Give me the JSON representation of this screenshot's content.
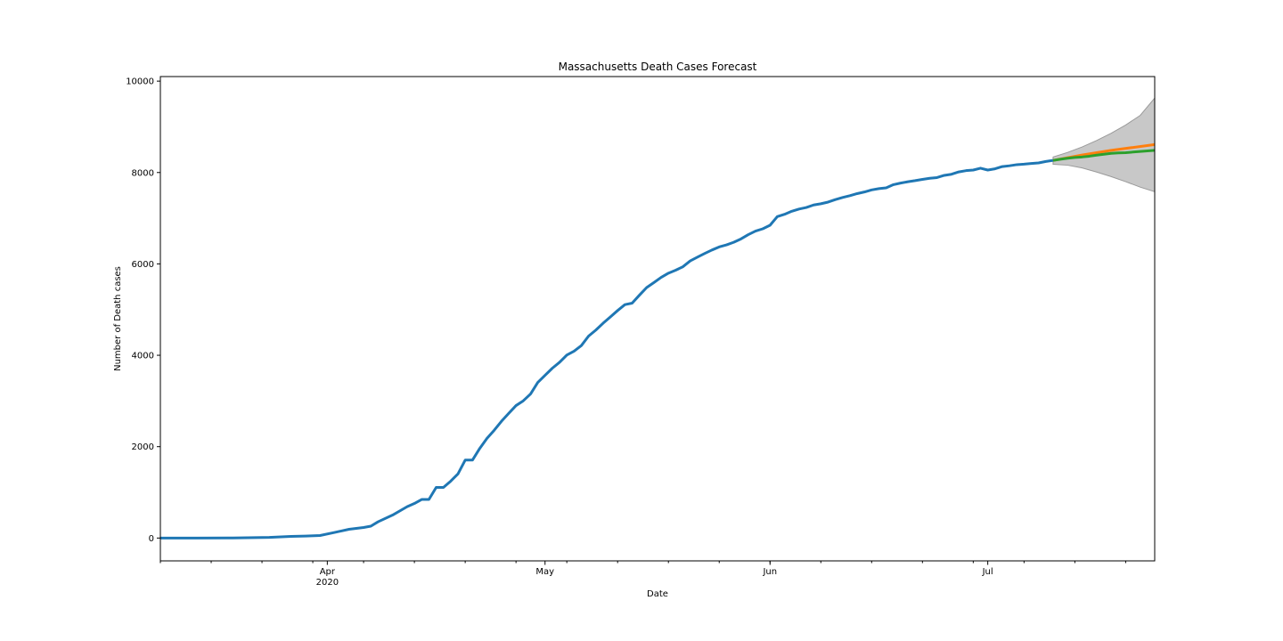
{
  "chart_data": {
    "type": "line",
    "title": "Massachusetts Death Cases Forecast",
    "xlabel": "Date",
    "ylabel": "Number of Death cases",
    "xlim": [
      "2020-03-09",
      "2020-07-24"
    ],
    "ylim": [
      -500,
      10100
    ],
    "yticks": [
      0,
      2000,
      4000,
      6000,
      8000,
      10000
    ],
    "xticks": [
      {
        "date": "2020-04-01",
        "label": "Apr",
        "sublabel": "2020"
      },
      {
        "date": "2020-05-01",
        "label": "May",
        "sublabel": ""
      },
      {
        "date": "2020-06-01",
        "label": "Jun",
        "sublabel": ""
      },
      {
        "date": "2020-07-01",
        "label": "Jul",
        "sublabel": ""
      }
    ],
    "grid": false,
    "series": [
      {
        "color": "#1f77b4",
        "points": [
          [
            "2020-03-09",
            0
          ],
          [
            "2020-03-14",
            0
          ],
          [
            "2020-03-19",
            2
          ],
          [
            "2020-03-24",
            15
          ],
          [
            "2020-03-27",
            35
          ],
          [
            "2020-03-29",
            44
          ],
          [
            "2020-03-31",
            56
          ],
          [
            "2020-04-02",
            122
          ],
          [
            "2020-04-04",
            192
          ],
          [
            "2020-04-06",
            231
          ],
          [
            "2020-04-07",
            260
          ],
          [
            "2020-04-08",
            356
          ],
          [
            "2020-04-10",
            503
          ],
          [
            "2020-04-12",
            686
          ],
          [
            "2020-04-13",
            756
          ],
          [
            "2020-04-14",
            844
          ],
          [
            "2020-04-15",
            844
          ],
          [
            "2020-04-16",
            1108
          ],
          [
            "2020-04-17",
            1108
          ],
          [
            "2020-04-18",
            1245
          ],
          [
            "2020-04-19",
            1404
          ],
          [
            "2020-04-20",
            1706
          ],
          [
            "2020-04-21",
            1706
          ],
          [
            "2020-04-22",
            1961
          ],
          [
            "2020-04-23",
            2182
          ],
          [
            "2020-04-24",
            2360
          ],
          [
            "2020-04-25",
            2556
          ],
          [
            "2020-04-26",
            2730
          ],
          [
            "2020-04-27",
            2899
          ],
          [
            "2020-04-28",
            3003
          ],
          [
            "2020-04-29",
            3153
          ],
          [
            "2020-04-30",
            3405
          ],
          [
            "2020-05-01",
            3562
          ],
          [
            "2020-05-02",
            3716
          ],
          [
            "2020-05-03",
            3846
          ],
          [
            "2020-05-04",
            4004
          ],
          [
            "2020-05-05",
            4090
          ],
          [
            "2020-05-06",
            4212
          ],
          [
            "2020-05-07",
            4420
          ],
          [
            "2020-05-08",
            4552
          ],
          [
            "2020-05-09",
            4702
          ],
          [
            "2020-05-10",
            4840
          ],
          [
            "2020-05-11",
            4979
          ],
          [
            "2020-05-12",
            5108
          ],
          [
            "2020-05-13",
            5141
          ],
          [
            "2020-05-14",
            5315
          ],
          [
            "2020-05-15",
            5482
          ],
          [
            "2020-05-16",
            5592
          ],
          [
            "2020-05-17",
            5705
          ],
          [
            "2020-05-18",
            5797
          ],
          [
            "2020-05-19",
            5862
          ],
          [
            "2020-05-20",
            5938
          ],
          [
            "2020-05-21",
            6066
          ],
          [
            "2020-05-22",
            6148
          ],
          [
            "2020-05-23",
            6228
          ],
          [
            "2020-05-24",
            6304
          ],
          [
            "2020-05-25",
            6372
          ],
          [
            "2020-05-26",
            6416
          ],
          [
            "2020-05-27",
            6473
          ],
          [
            "2020-05-28",
            6547
          ],
          [
            "2020-05-29",
            6640
          ],
          [
            "2020-05-30",
            6718
          ],
          [
            "2020-05-31",
            6768
          ],
          [
            "2020-06-01",
            6846
          ],
          [
            "2020-06-02",
            7035
          ],
          [
            "2020-06-03",
            7085
          ],
          [
            "2020-06-04",
            7152
          ],
          [
            "2020-06-05",
            7201
          ],
          [
            "2020-06-06",
            7235
          ],
          [
            "2020-06-07",
            7289
          ],
          [
            "2020-06-08",
            7316
          ],
          [
            "2020-06-09",
            7353
          ],
          [
            "2020-06-10",
            7408
          ],
          [
            "2020-06-11",
            7454
          ],
          [
            "2020-06-12",
            7492
          ],
          [
            "2020-06-13",
            7538
          ],
          [
            "2020-06-14",
            7574
          ],
          [
            "2020-06-15",
            7619
          ],
          [
            "2020-06-16",
            7647
          ],
          [
            "2020-06-17",
            7665
          ],
          [
            "2020-06-18",
            7734
          ],
          [
            "2020-06-19",
            7769
          ],
          [
            "2020-06-20",
            7799
          ],
          [
            "2020-06-21",
            7822
          ],
          [
            "2020-06-22",
            7849
          ],
          [
            "2020-06-23",
            7874
          ],
          [
            "2020-06-24",
            7889
          ],
          [
            "2020-06-25",
            7938
          ],
          [
            "2020-06-26",
            7962
          ],
          [
            "2020-06-27",
            8013
          ],
          [
            "2020-06-28",
            8041
          ],
          [
            "2020-06-29",
            8054
          ],
          [
            "2020-06-30",
            8095
          ],
          [
            "2020-07-01",
            8054
          ],
          [
            "2020-07-02",
            8081
          ],
          [
            "2020-07-03",
            8130
          ],
          [
            "2020-07-04",
            8148
          ],
          [
            "2020-07-05",
            8172
          ],
          [
            "2020-07-06",
            8183
          ],
          [
            "2020-07-07",
            8198
          ],
          [
            "2020-07-08",
            8210
          ],
          [
            "2020-07-09",
            8242
          ],
          [
            "2020-07-10",
            8265
          ]
        ]
      },
      {
        "color": "#ff7f0e",
        "points": [
          [
            "2020-07-10",
            8265
          ],
          [
            "2020-07-14",
            8383
          ],
          [
            "2020-07-18",
            8485
          ],
          [
            "2020-07-24",
            8612
          ]
        ]
      },
      {
        "color": "#2ca02c",
        "points": [
          [
            "2020-07-10",
            8265
          ],
          [
            "2020-07-11",
            8290
          ],
          [
            "2020-07-12",
            8312
          ],
          [
            "2020-07-13",
            8330
          ],
          [
            "2020-07-14",
            8340
          ],
          [
            "2020-07-15",
            8357
          ],
          [
            "2020-07-16",
            8380
          ],
          [
            "2020-07-17",
            8400
          ],
          [
            "2020-07-18",
            8420
          ],
          [
            "2020-07-19",
            8430
          ],
          [
            "2020-07-20",
            8435
          ],
          [
            "2020-07-21",
            8448
          ],
          [
            "2020-07-22",
            8460
          ],
          [
            "2020-07-23",
            8472
          ],
          [
            "2020-07-24",
            8485
          ]
        ]
      }
    ],
    "confidence_band": {
      "color": "#c8c8c8",
      "upper": [
        [
          "2020-07-10",
          8340
        ],
        [
          "2020-07-12",
          8440
        ],
        [
          "2020-07-14",
          8560
        ],
        [
          "2020-07-16",
          8700
        ],
        [
          "2020-07-18",
          8860
        ],
        [
          "2020-07-20",
          9040
        ],
        [
          "2020-07-22",
          9250
        ],
        [
          "2020-07-24",
          9630
        ]
      ],
      "lower": [
        [
          "2020-07-10",
          8180
        ],
        [
          "2020-07-12",
          8160
        ],
        [
          "2020-07-14",
          8100
        ],
        [
          "2020-07-16",
          8010
        ],
        [
          "2020-07-18",
          7910
        ],
        [
          "2020-07-20",
          7800
        ],
        [
          "2020-07-22",
          7680
        ],
        [
          "2020-07-24",
          7580
        ]
      ]
    }
  }
}
